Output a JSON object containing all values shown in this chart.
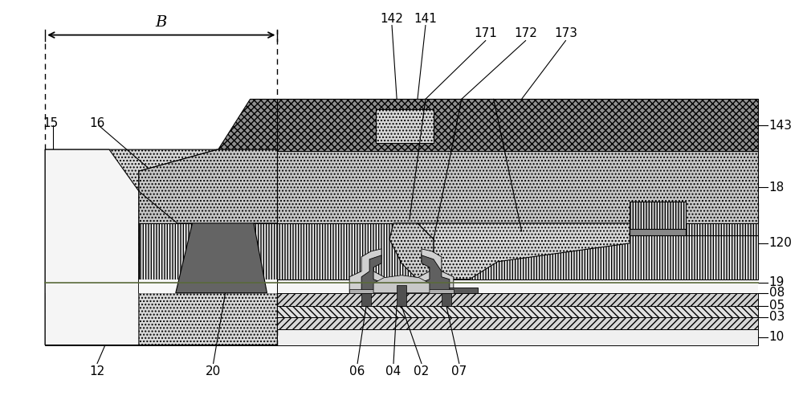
{
  "fig_width": 10.0,
  "fig_height": 5.08,
  "dpi": 100,
  "bg_color": "#ffffff",
  "colors": {
    "dark_gray_top": "#707070",
    "medium_gray": "#a0a0a0",
    "light_dotted": "#c0c0c0",
    "stripe_white": "#e8e8e8",
    "white_region": "#f0f0f0",
    "black": "#000000",
    "dark_element": "#606060",
    "very_light": "#d8d8d8",
    "tft_dark": "#585858",
    "tft_light": "#c8c8c8",
    "green_line": "#4a6a2a"
  },
  "xlim": [
    0,
    10
  ],
  "ylim": [
    0,
    5.08
  ]
}
